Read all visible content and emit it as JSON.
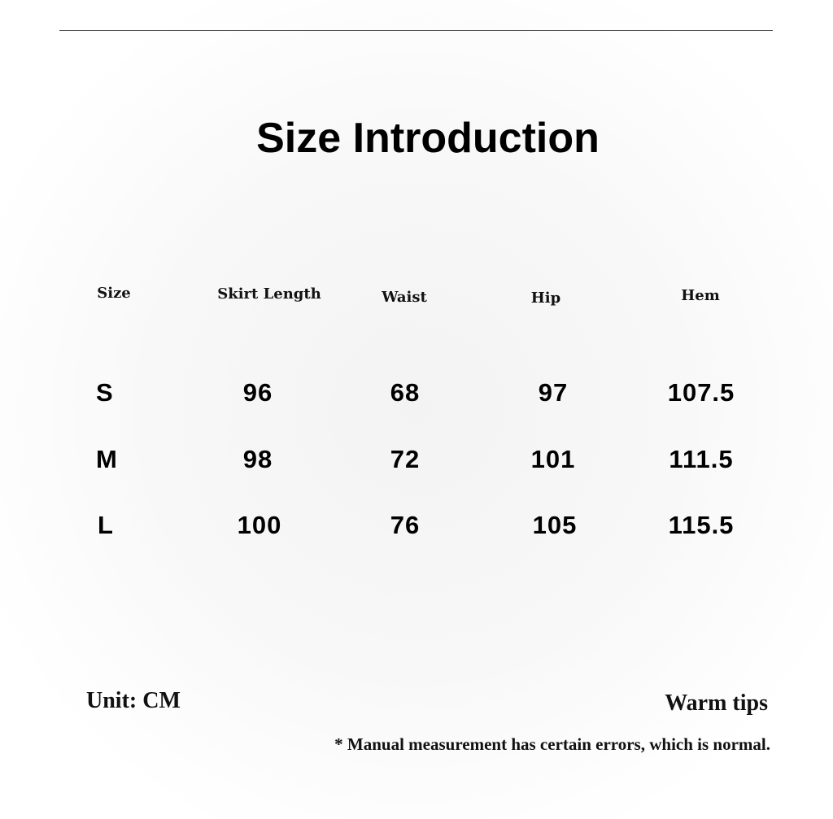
{
  "title": "Size Introduction",
  "table": {
    "headers": [
      "Size",
      "Skirt Length",
      "Waist",
      "Hip",
      "Hem"
    ],
    "rows": [
      [
        "S",
        "96",
        "68",
        "97",
        "107.5"
      ],
      [
        "M",
        "98",
        "72",
        "101",
        "111.5"
      ],
      [
        "L",
        "100",
        "76",
        "105",
        "115.5"
      ]
    ]
  },
  "footer": {
    "unit": "Unit: CM",
    "tips_title": "Warm tips",
    "note": "* Manual measurement has certain errors, which is normal."
  }
}
